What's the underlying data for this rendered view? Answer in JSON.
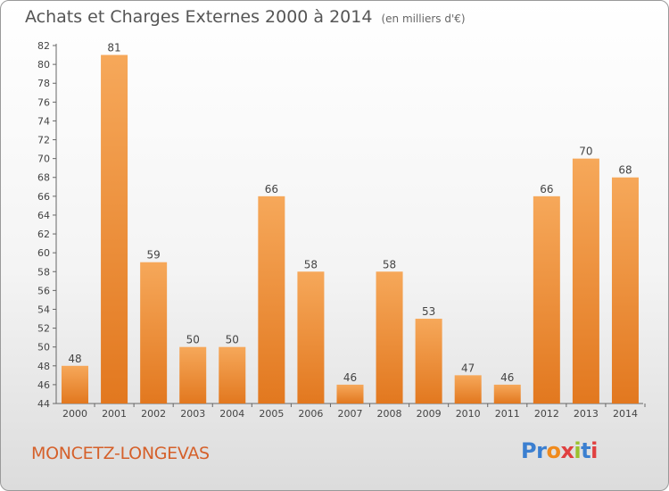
{
  "title": "Achats et Charges Externes 2000 à 2014",
  "subtitle": "(en milliers d'€)",
  "commune": "MONCETZ-LONGEVAS",
  "logo": {
    "text": "Proxiti",
    "letter_colors": [
      "#3b7fd0",
      "#3b7fd0",
      "#f08a1c",
      "#e04040",
      "#9bc12e",
      "#3b7fd0",
      "#e04040"
    ]
  },
  "colors": {
    "bar_top": "#f6a85a",
    "bar_bottom": "#e2781f",
    "accent": "#d5602a"
  },
  "chart_data": {
    "type": "bar",
    "title": "Achats et Charges Externes 2000 à 2014",
    "subtitle": "(en milliers d'€)",
    "categories": [
      "2000",
      "2001",
      "2002",
      "2003",
      "2004",
      "2005",
      "2006",
      "2007",
      "2008",
      "2009",
      "2010",
      "2011",
      "2012",
      "2013",
      "2014"
    ],
    "values": [
      48,
      81,
      59,
      50,
      50,
      66,
      58,
      46,
      58,
      53,
      47,
      46,
      66,
      70,
      68
    ],
    "ylim": [
      44,
      82
    ],
    "yticks": [
      44,
      46,
      48,
      50,
      52,
      54,
      56,
      58,
      60,
      62,
      64,
      66,
      68,
      70,
      72,
      74,
      76,
      78,
      80,
      82
    ],
    "grid": false,
    "xlabel": "",
    "ylabel": ""
  }
}
